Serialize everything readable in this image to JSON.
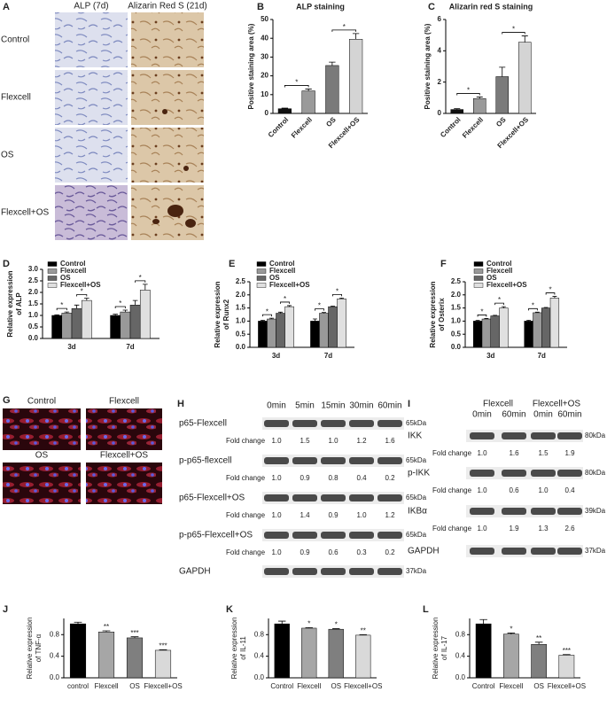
{
  "figure_a": {
    "label": "A",
    "columns": [
      "ALP (7d)",
      "Alizarin Red S (21d)"
    ],
    "rows": [
      "Control",
      "Flexcell",
      "OS",
      "Flexcell+OS"
    ]
  },
  "chart_data": [
    {
      "label": "B",
      "type": "bar",
      "title": "ALP staining",
      "ylabel": "Positive staining area (%)",
      "categories": [
        "Control",
        "Flexcell",
        "OS",
        "Flexcell+OS"
      ],
      "values": [
        2.5,
        12,
        25.5,
        39.5
      ],
      "errors": [
        0.3,
        1,
        1.8,
        3
      ],
      "colors": [
        "#111111",
        "#9a9a9a",
        "#7a7a7a",
        "#d4d4d4"
      ],
      "ylim": [
        0,
        50
      ],
      "yticks": [
        0,
        10,
        20,
        30,
        40,
        50
      ],
      "significance": [
        null,
        "*",
        null,
        "*"
      ],
      "significance_brackets": true
    },
    {
      "label": "C",
      "type": "bar",
      "title": "Alizarin red S staining",
      "ylabel": "Positive staining area (%)",
      "categories": [
        "Control",
        "Flexcell",
        "OS",
        "Flexcell+OS"
      ],
      "values": [
        0.25,
        0.95,
        2.35,
        4.55
      ],
      "errors": [
        0.05,
        0.1,
        0.6,
        0.4
      ],
      "colors": [
        "#111111",
        "#9a9a9a",
        "#7a7a7a",
        "#d4d4d4"
      ],
      "ylim": [
        0,
        6
      ],
      "yticks": [
        0,
        2,
        4,
        6
      ],
      "significance": [
        null,
        "*",
        null,
        "*"
      ],
      "significance_brackets": true
    },
    {
      "label": "D",
      "type": "bar",
      "ylabel": [
        "Relative expression",
        "of ALP"
      ],
      "categories": [
        "3d",
        "7d"
      ],
      "series": [
        {
          "name": "Control",
          "color": "#000000",
          "values": [
            1.0,
            1.0
          ],
          "errors": [
            0.03,
            0.05
          ]
        },
        {
          "name": "Flexcell",
          "color": "#999999",
          "values": [
            1.1,
            1.15
          ],
          "errors": [
            0.05,
            0.08
          ],
          "significance": [
            "*",
            "*"
          ]
        },
        {
          "name": "OS",
          "color": "#666666",
          "values": [
            1.3,
            1.45
          ],
          "errors": [
            0.15,
            0.2
          ]
        },
        {
          "name": "Flexcell+OS",
          "color": "#e0e0e0",
          "values": [
            1.65,
            2.1
          ],
          "errors": [
            0.1,
            0.25
          ],
          "significance": [
            "*",
            "*"
          ]
        }
      ],
      "ylim": [
        0,
        3
      ],
      "yticks": [
        {
          "value": 0,
          "label": "0.0"
        },
        0.5,
        {
          "value": 1,
          "label": "1.0"
        },
        1.5,
        {
          "value": 2,
          "label": "2.0"
        },
        2.5,
        {
          "value": 3,
          "label": "3.0"
        }
      ]
    },
    {
      "label": "E",
      "type": "bar",
      "ylabel": [
        "Relative expression",
        "of Runx2"
      ],
      "categories": [
        "3d",
        "7d"
      ],
      "series": [
        {
          "name": "Control",
          "color": "#000000",
          "values": [
            1.0,
            1.0
          ],
          "errors": [
            0.03,
            0.08
          ]
        },
        {
          "name": "Flexcell",
          "color": "#999999",
          "values": [
            1.08,
            1.3
          ],
          "errors": [
            0.03,
            0.03
          ],
          "significance": [
            "*",
            "*"
          ]
        },
        {
          "name": "OS",
          "color": "#666666",
          "values": [
            1.3,
            1.55
          ],
          "errors": [
            0.04,
            0.02
          ]
        },
        {
          "name": "Flexcell+OS",
          "color": "#e0e0e0",
          "values": [
            1.55,
            1.85
          ],
          "errors": [
            0.04,
            0.03
          ],
          "significance": [
            "*",
            "*"
          ]
        }
      ],
      "ylim": [
        0,
        2.5
      ],
      "yticks": [
        {
          "value": 0,
          "label": "0.0"
        },
        0.5,
        {
          "value": 1,
          "label": "1.0"
        },
        1.5,
        {
          "value": 2,
          "label": "2.0"
        },
        2.5
      ]
    },
    {
      "label": "F",
      "type": "bar",
      "ylabel": [
        "Relative expression",
        "of Osterix"
      ],
      "categories": [
        "3d",
        "7d"
      ],
      "series": [
        {
          "name": "Control",
          "color": "#000000",
          "values": [
            1.0,
            1.0
          ],
          "errors": [
            0.03,
            0.03
          ]
        },
        {
          "name": "Flexcell",
          "color": "#999999",
          "values": [
            1.08,
            1.32
          ],
          "errors": [
            0.02,
            0.02
          ],
          "significance": [
            "*",
            "*"
          ]
        },
        {
          "name": "OS",
          "color": "#666666",
          "values": [
            1.2,
            1.5
          ],
          "errors": [
            0.02,
            0.02
          ]
        },
        {
          "name": "Flexcell+OS",
          "color": "#e0e0e0",
          "values": [
            1.5,
            1.88
          ],
          "errors": [
            0.05,
            0.06
          ],
          "significance": [
            "*",
            "*"
          ]
        }
      ],
      "ylim": [
        0,
        2.5
      ],
      "yticks": [
        {
          "value": 0,
          "label": "0.0"
        },
        0.5,
        {
          "value": 1,
          "label": "1.0"
        },
        1.5,
        {
          "value": 2,
          "label": "2.0"
        },
        2.5
      ]
    },
    {
      "label": "J",
      "type": "bar",
      "ylabel": [
        "Relative expression",
        "of TNF-α"
      ],
      "categories": [
        "control",
        "Flexcell",
        "OS",
        "Flexcell+OS"
      ],
      "values": [
        1.0,
        0.85,
        0.74,
        0.51
      ],
      "errors": [
        0.03,
        0.02,
        0.02,
        0.01
      ],
      "colors": [
        "#000000",
        "#a6a6a6",
        "#7f7f7f",
        "#d9d9d9"
      ],
      "ylim": [
        0,
        1.1
      ],
      "yticks": [
        {
          "value": 0,
          "label": "0.0"
        },
        0.4,
        0.8
      ],
      "significance": [
        null,
        "**",
        "***",
        "***"
      ]
    },
    {
      "label": "K",
      "type": "bar",
      "ylabel": [
        "Relative expression",
        "of IL-11"
      ],
      "categories": [
        "Control",
        "Flexcell",
        "OS",
        "Flexcell+OS"
      ],
      "values": [
        1.0,
        0.92,
        0.9,
        0.79
      ],
      "errors": [
        0.05,
        0.01,
        0.01,
        0.01
      ],
      "colors": [
        "#000000",
        "#a6a6a6",
        "#7f7f7f",
        "#d9d9d9"
      ],
      "ylim": [
        0,
        1.1
      ],
      "yticks": [
        {
          "value": 0,
          "label": "0.0"
        },
        0.4,
        0.8
      ],
      "significance": [
        null,
        "*",
        "*",
        "**"
      ]
    },
    {
      "label": "L",
      "type": "bar",
      "ylabel": [
        "Relative expression",
        "of IL-17"
      ],
      "categories": [
        "Control",
        "Flexcell",
        "OS",
        "Flexcell+OS"
      ],
      "values": [
        1.0,
        0.81,
        0.62,
        0.42
      ],
      "errors": [
        0.08,
        0.02,
        0.04,
        0.01
      ],
      "colors": [
        "#000000",
        "#a6a6a6",
        "#7f7f7f",
        "#d9d9d9"
      ],
      "ylim": [
        0,
        1.1
      ],
      "yticks": [
        {
          "value": 0,
          "label": "0.0"
        },
        0.4,
        0.8
      ],
      "significance": [
        null,
        "*",
        "**",
        "***"
      ]
    }
  ],
  "figure_g": {
    "label": "G",
    "images": [
      "Control",
      "Flexcell",
      "OS",
      "Flexcell+OS"
    ]
  },
  "figure_h": {
    "label": "H",
    "lanes": [
      "0min",
      "5min",
      "15min",
      "30min",
      "60min"
    ],
    "fold_change_label": "Fold change",
    "blots": [
      {
        "name": "p65-Flexcell",
        "kda": "65kDa",
        "fold_change": [
          "1.0",
          "1.5",
          "1.0",
          "1.2",
          "1.6"
        ]
      },
      {
        "name": "p-p65-flexcell",
        "kda": "65kDa",
        "fold_change": [
          "1.0",
          "0.9",
          "0.8",
          "0.4",
          "0.2"
        ]
      },
      {
        "name": "p65-Flexcell+OS",
        "kda": "65kDa",
        "fold_change": [
          "1.0",
          "1.4",
          "0.9",
          "1.0",
          "1.2"
        ]
      },
      {
        "name": "p-p65-Flexcell+OS",
        "kda": "65kDa",
        "fold_change": [
          "1.0",
          "0.9",
          "0.6",
          "0.3",
          "0.2"
        ]
      },
      {
        "name": "GAPDH",
        "kda": "37kDa"
      }
    ]
  },
  "figure_i": {
    "label": "I",
    "groups": [
      "Flexcell",
      "Flexcell+OS"
    ],
    "lanes": [
      "0min",
      "60min",
      "0min",
      "60min"
    ],
    "fold_change_label": "Fold change",
    "blots": [
      {
        "name": "IKK",
        "kda": "80kDa",
        "fold_change": [
          "1.0",
          "1.6",
          "1.5",
          "1.9"
        ]
      },
      {
        "name": "p-IKK",
        "kda": "80kDa",
        "fold_change": [
          "1.0",
          "0.6",
          "1.0",
          "0.4"
        ]
      },
      {
        "name": "IKBα",
        "kda": "39kDa",
        "fold_change": [
          "1.0",
          "1.9",
          "1.3",
          "2.6"
        ]
      },
      {
        "name": "GAPDH",
        "kda": "37kDa"
      }
    ]
  }
}
